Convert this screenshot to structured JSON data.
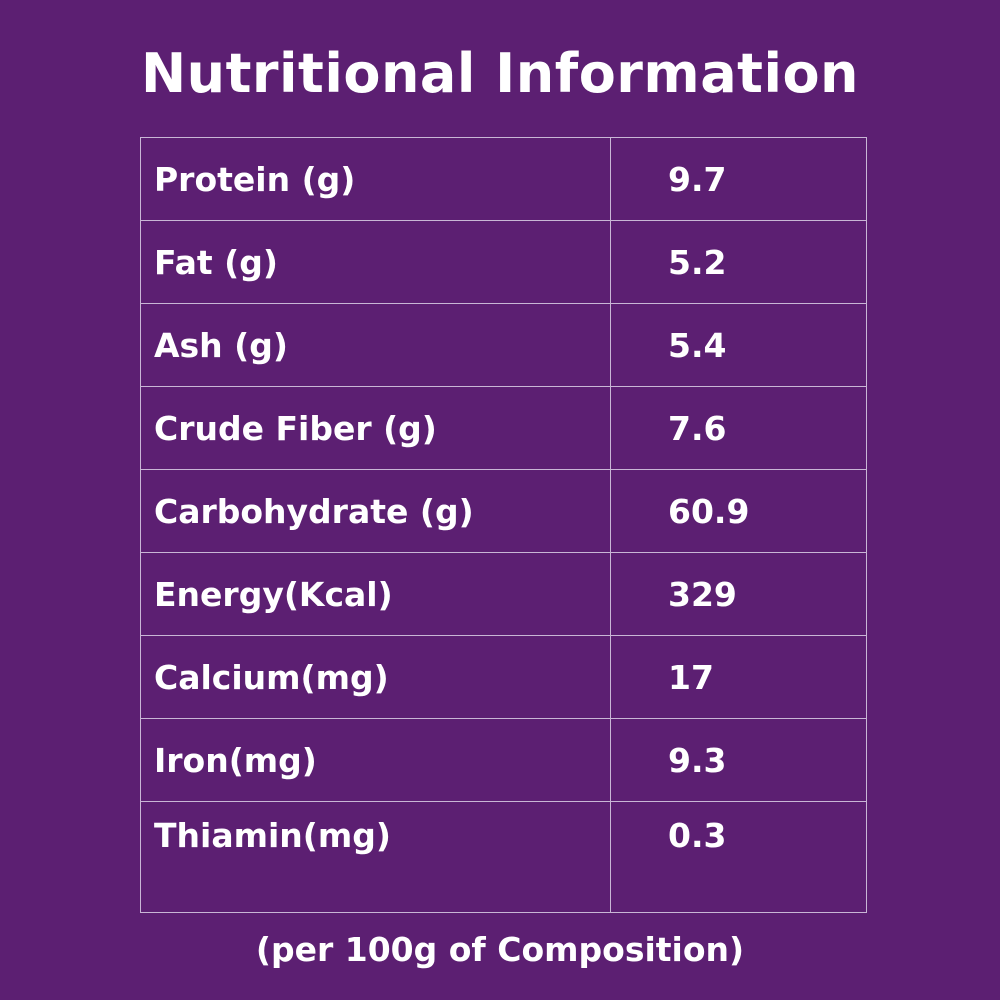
{
  "title": "Nutritional Information",
  "rows": [
    {
      "label": "Protein (g)",
      "value": "9.7"
    },
    {
      "label": "Fat (g)",
      "value": "5.2"
    },
    {
      "label": "Ash (g)",
      "value": "5.4"
    },
    {
      "label": "Crude Fiber (g)",
      "value": "7.6"
    },
    {
      "label": "Carbohydrate (g)",
      "value": "60.9"
    },
    {
      "label": "Energy(Kcal)",
      "value": "329"
    },
    {
      "label": "Calcium(mg)",
      "value": "17"
    },
    {
      "label": "Iron(mg)",
      "value": "9.3"
    },
    {
      "label": "Thiamin(mg)",
      "value": "0.3"
    }
  ],
  "footnote": "(per 100g of Composition)",
  "colors": {
    "background": "#5c1f72",
    "text": "#ffffff",
    "grid": "#c9b6d6"
  }
}
